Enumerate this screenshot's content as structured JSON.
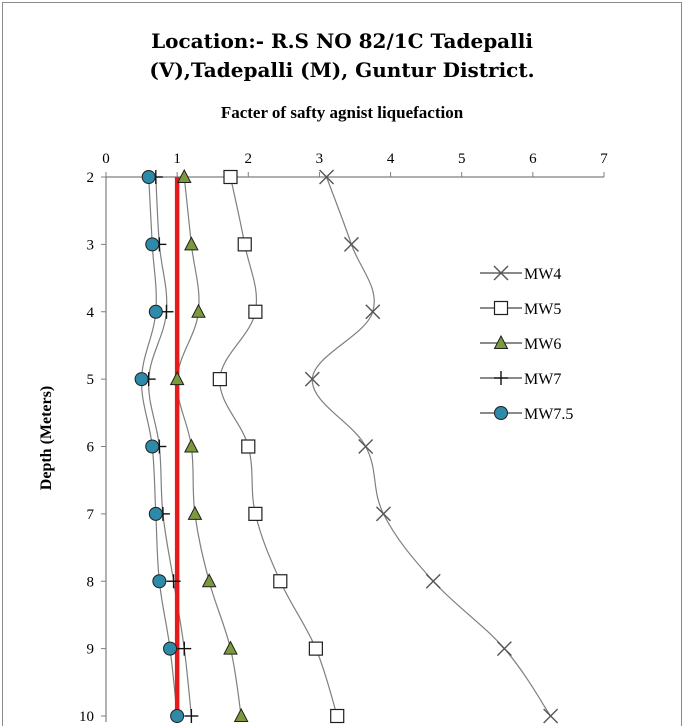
{
  "chart_data": {
    "type": "line",
    "title": "Location:- R.S NO 82/1C Tadepalli",
    "title_line2": "(V),Tadepalli (M), Guntur District.",
    "xlabel": "Facter of safty agnist liquefaction",
    "ylabel": "Depth (Meters)",
    "x_axis_position": "top",
    "y_axis_reversed": true,
    "xlim": [
      0,
      7
    ],
    "ylim": [
      2,
      10
    ],
    "x_ticks": [
      "0",
      "1",
      "2",
      "3",
      "4",
      "5",
      "6",
      "7"
    ],
    "y_ticks": [
      "2",
      "3",
      "4",
      "5",
      "6",
      "7",
      "8",
      "9",
      "10"
    ],
    "grid": false,
    "legend_position": "right",
    "depth": [
      2,
      3,
      4,
      5,
      6,
      7,
      8,
      9,
      10
    ],
    "series": [
      {
        "name": "MW4",
        "marker": "x",
        "x": [
          3.1,
          3.45,
          3.75,
          2.9,
          3.65,
          3.9,
          4.6,
          5.6,
          6.25
        ]
      },
      {
        "name": "MW5",
        "marker": "square",
        "x": [
          1.75,
          1.95,
          2.1,
          1.6,
          2.0,
          2.1,
          2.45,
          2.95,
          3.25
        ]
      },
      {
        "name": "MW6",
        "marker": "triangle",
        "x": [
          1.1,
          1.2,
          1.3,
          1.0,
          1.2,
          1.25,
          1.45,
          1.75,
          1.9
        ]
      },
      {
        "name": "MW7",
        "marker": "plus",
        "x": [
          0.7,
          0.75,
          0.85,
          0.6,
          0.75,
          0.8,
          0.95,
          1.1,
          1.2
        ]
      },
      {
        "name": "MW7.5",
        "marker": "circle",
        "x": [
          0.6,
          0.65,
          0.7,
          0.5,
          0.65,
          0.7,
          0.75,
          0.9,
          1.0
        ]
      }
    ],
    "reference_line": {
      "x": 1,
      "color": "#e51b1b"
    },
    "colors": {
      "line": "#7f7f7f",
      "triangle_fill": "#7a9a3d",
      "circle_fill": "#2d8aa8",
      "marker_stroke": "#1f1f1f"
    }
  }
}
